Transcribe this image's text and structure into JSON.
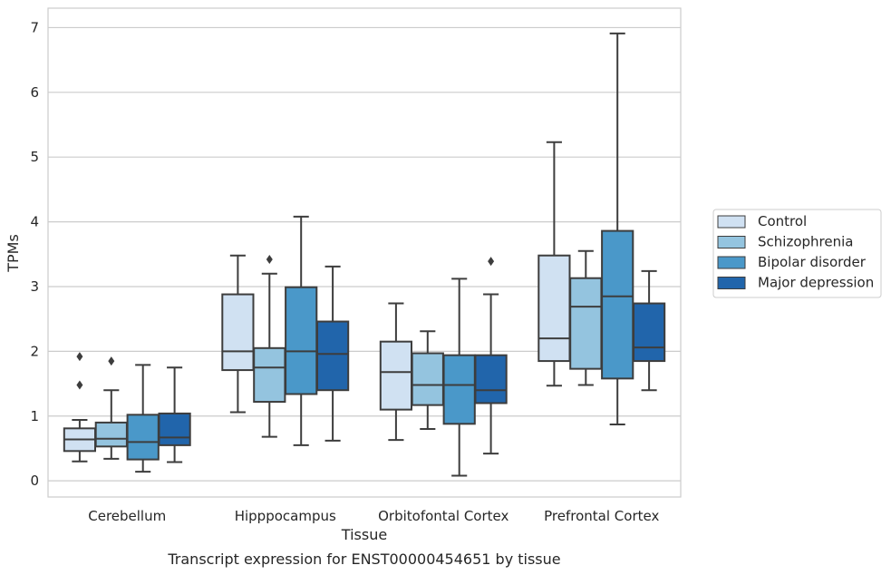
{
  "chart_data": {
    "type": "box",
    "title": "",
    "caption": "Transcript expression for ENST00000454651 by tissue",
    "xlabel": "Tissue",
    "ylabel": "TPMs",
    "ylim": [
      -0.25,
      7.3
    ],
    "yticks": [
      0,
      1,
      2,
      3,
      4,
      5,
      6,
      7
    ],
    "grid": true,
    "legend_position": "right",
    "categories": [
      "Cerebellum",
      "Hipppocampus",
      "Orbitofontal Cortex",
      "Prefrontal Cortex"
    ],
    "series": [
      {
        "name": "Control",
        "color": "#d0e1f2",
        "boxes": [
          {
            "whislo": 0.3,
            "q1": 0.46,
            "med": 0.64,
            "q3": 0.81,
            "whishi": 0.94,
            "fliers": [
              1.48,
              1.92
            ]
          },
          {
            "whislo": 1.06,
            "q1": 1.71,
            "med": 2.0,
            "q3": 2.88,
            "whishi": 3.48,
            "fliers": []
          },
          {
            "whislo": 0.63,
            "q1": 1.1,
            "med": 1.68,
            "q3": 2.15,
            "whishi": 2.74,
            "fliers": []
          },
          {
            "whislo": 1.47,
            "q1": 1.85,
            "med": 2.2,
            "q3": 3.48,
            "whishi": 5.23,
            "fliers": []
          }
        ]
      },
      {
        "name": "Schizophrenia",
        "color": "#94c4df",
        "boxes": [
          {
            "whislo": 0.34,
            "q1": 0.53,
            "med": 0.65,
            "q3": 0.9,
            "whishi": 1.4,
            "fliers": [
              1.85
            ]
          },
          {
            "whislo": 0.68,
            "q1": 1.22,
            "med": 1.75,
            "q3": 2.05,
            "whishi": 3.2,
            "fliers": [
              3.42
            ]
          },
          {
            "whislo": 0.8,
            "q1": 1.17,
            "med": 1.48,
            "q3": 1.97,
            "whishi": 2.31,
            "fliers": []
          },
          {
            "whislo": 1.48,
            "q1": 1.73,
            "med": 2.69,
            "q3": 3.13,
            "whishi": 3.55,
            "fliers": []
          }
        ]
      },
      {
        "name": "Bipolar disorder",
        "color": "#4a98c9",
        "boxes": [
          {
            "whislo": 0.14,
            "q1": 0.33,
            "med": 0.6,
            "q3": 1.02,
            "whishi": 1.79,
            "fliers": []
          },
          {
            "whislo": 0.55,
            "q1": 1.34,
            "med": 2.0,
            "q3": 2.99,
            "whishi": 4.08,
            "fliers": []
          },
          {
            "whislo": 0.08,
            "q1": 0.88,
            "med": 1.48,
            "q3": 1.94,
            "whishi": 3.12,
            "fliers": []
          },
          {
            "whislo": 0.87,
            "q1": 1.58,
            "med": 2.85,
            "q3": 3.86,
            "whishi": 6.91,
            "fliers": []
          }
        ]
      },
      {
        "name": "Major depression",
        "color": "#2165ab",
        "boxes": [
          {
            "whislo": 0.29,
            "q1": 0.55,
            "med": 0.67,
            "q3": 1.04,
            "whishi": 1.75,
            "fliers": []
          },
          {
            "whislo": 0.62,
            "q1": 1.4,
            "med": 1.96,
            "q3": 2.46,
            "whishi": 3.31,
            "fliers": []
          },
          {
            "whislo": 0.42,
            "q1": 1.2,
            "med": 1.4,
            "q3": 1.94,
            "whishi": 2.88,
            "fliers": [
              3.39
            ]
          },
          {
            "whislo": 1.4,
            "q1": 1.85,
            "med": 2.06,
            "q3": 2.74,
            "whishi": 3.24,
            "fliers": []
          }
        ]
      }
    ]
  }
}
